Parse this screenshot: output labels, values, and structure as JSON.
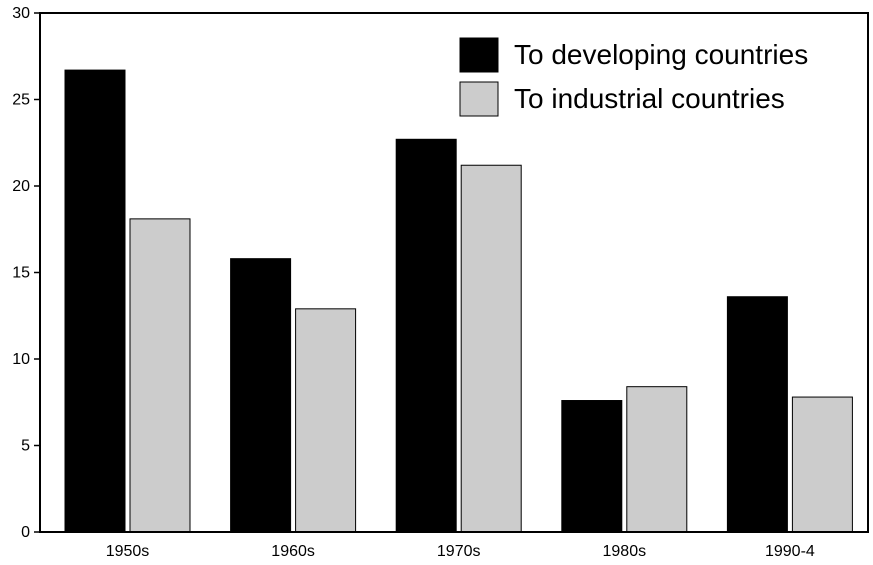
{
  "chart_data": {
    "type": "bar",
    "title": "",
    "xlabel": "",
    "ylabel": "",
    "ylim": [
      0,
      30
    ],
    "y_ticks": [
      "0",
      "5",
      "10",
      "15",
      "20",
      "25",
      "30"
    ],
    "categories": [
      "1950s",
      "1960s",
      "1970s",
      "1980s",
      "1990-4"
    ],
    "series": [
      {
        "name": "To developing countries",
        "color": "#000000",
        "values": [
          26.7,
          15.8,
          22.7,
          7.6,
          13.6
        ]
      },
      {
        "name": "To industrial countries",
        "color": "#cccccc",
        "values": [
          18.1,
          12.9,
          21.2,
          8.4,
          7.8
        ]
      }
    ],
    "legend_position": "top-right",
    "grid": false
  }
}
